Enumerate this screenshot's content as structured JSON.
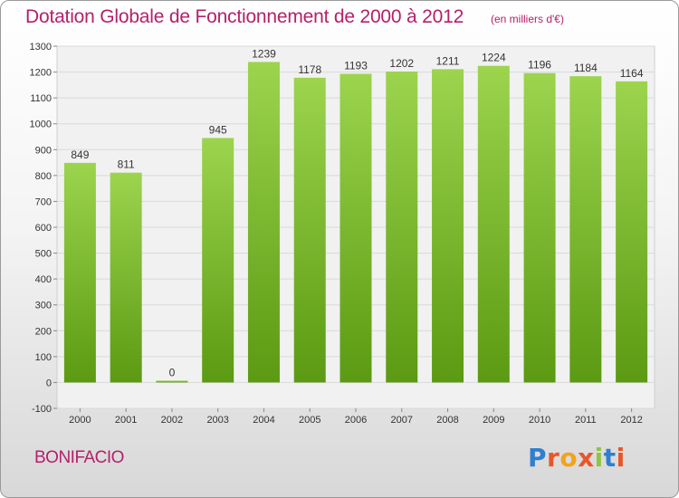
{
  "title": "Dotation Globale de Fonctionnement de 2000 à 2012",
  "unit": "(en milliers d'€)",
  "commune": "BONIFACIO",
  "logo": {
    "letters": [
      "P",
      "r",
      "o",
      "x",
      "i",
      "t",
      "i"
    ],
    "colors": [
      "#2f7fd0",
      "#e8562a",
      "#f3a31b",
      "#e8562a",
      "#8ec63f",
      "#2f7fd0",
      "#e8562a"
    ]
  },
  "colors": {
    "bar_top": "#9cd44e",
    "bar_bottom": "#5b9a12",
    "title": "#b5206a",
    "grid": "#d9d9d9"
  },
  "chart_data": {
    "type": "bar",
    "categories": [
      "2000",
      "2001",
      "2002",
      "2003",
      "2004",
      "2005",
      "2006",
      "2007",
      "2008",
      "2009",
      "2010",
      "2011",
      "2012"
    ],
    "values": [
      849,
      811,
      0,
      945,
      1239,
      1178,
      1193,
      1202,
      1211,
      1224,
      1196,
      1184,
      1164
    ],
    "title": "Dotation Globale de Fonctionnement de 2000 à 2012",
    "ylim": [
      -100,
      1300
    ],
    "yticks": [
      -100,
      0,
      100,
      200,
      300,
      400,
      500,
      600,
      700,
      800,
      900,
      1000,
      1100,
      1200,
      1300
    ],
    "grid": true,
    "data_labels": true
  }
}
